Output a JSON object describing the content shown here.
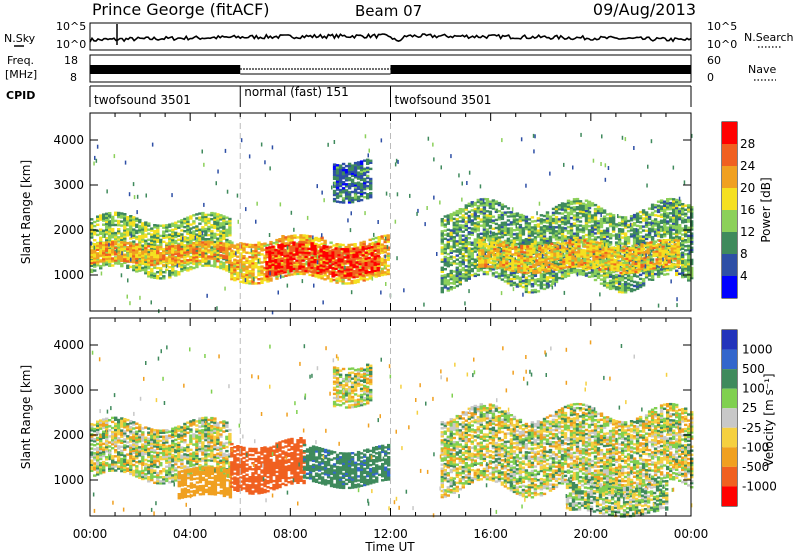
{
  "header": {
    "station": "Prince George (fitACF)",
    "beam": "Beam 07",
    "date": "09/Aug/2013"
  },
  "strips": {
    "nsky_label": "N.Sky",
    "nsearch_label": "N.Search",
    "freq_label_1": "Freq.",
    "freq_label_2": "[MHz]",
    "nave_label": "Nave",
    "cpid_label": "CPID",
    "noise_ticks_left": [
      "10^5",
      "10^0"
    ],
    "noise_ticks_right": [
      "10^5",
      "10^0"
    ],
    "freq_ticks": [
      "18",
      "8"
    ],
    "nave_ticks": [
      "60",
      "0"
    ]
  },
  "cpid_segments": [
    {
      "label": "twofsound 3501",
      "start": 0,
      "end": 6
    },
    {
      "label": "normal (fast) 151",
      "start": 6,
      "end": 12
    },
    {
      "label": "twofsound 3501",
      "start": 12,
      "end": 24
    }
  ],
  "chart_data": [
    {
      "type": "heatmap",
      "name": "power",
      "ylabel": "Slant Range [km]",
      "xlabel": "Time UT",
      "xlim": [
        0,
        24
      ],
      "ylim": [
        200,
        4600
      ],
      "x_ticks": [
        "00:00",
        "04:00",
        "08:00",
        "12:00",
        "16:00",
        "20:00",
        "00:00"
      ],
      "y_ticks": [
        1000,
        2000,
        3000,
        4000
      ],
      "colorbar": {
        "label": "Power [dB]",
        "levels": [
          4,
          8,
          12,
          16,
          20,
          24,
          28
        ],
        "colors": [
          "#0000ff",
          "#2e4fa6",
          "#3f8a5c",
          "#8cd05a",
          "#f5e020",
          "#f0a020",
          "#f06020",
          "#ff0000"
        ]
      },
      "regions": [
        {
          "t0": 0.0,
          "t1": 5.6,
          "r0": 1050,
          "r1": 2250,
          "value": 14
        },
        {
          "t0": 0.0,
          "t1": 5.6,
          "r0": 1250,
          "r1": 1700,
          "value": 22
        },
        {
          "t0": 5.6,
          "t1": 11.9,
          "r0": 900,
          "r1": 1800,
          "value": 20
        },
        {
          "t0": 7.0,
          "t1": 11.5,
          "r0": 1000,
          "r1": 1650,
          "value": 28
        },
        {
          "t0": 9.7,
          "t1": 11.2,
          "r0": 2700,
          "r1": 3600,
          "value": 8
        },
        {
          "t0": 14.0,
          "t1": 24.0,
          "r0": 800,
          "r1": 2500,
          "value": 12
        },
        {
          "t0": 15.5,
          "t1": 23.5,
          "r0": 1100,
          "r1": 1700,
          "value": 20
        }
      ]
    },
    {
      "type": "heatmap",
      "name": "velocity",
      "ylabel": "Slant Range [km]",
      "xlabel": "Time UT",
      "xlim": [
        0,
        24
      ],
      "ylim": [
        200,
        4600
      ],
      "x_ticks": [
        "00:00",
        "04:00",
        "08:00",
        "12:00",
        "16:00",
        "20:00",
        "00:00"
      ],
      "y_ticks": [
        1000,
        2000,
        3000,
        4000
      ],
      "colorbar": {
        "label": "Velocity [m s⁻¹]",
        "levels": [
          1000,
          500,
          100,
          25,
          -25,
          -100,
          -500,
          -1000
        ],
        "colors": [
          "#2233bb",
          "#3366cc",
          "#3f8a5c",
          "#80d050",
          "#c8c8c8",
          "#f5d040",
          "#f0a020",
          "#f06020",
          "#ff0000"
        ]
      },
      "regions": [
        {
          "t0": 0.0,
          "t1": 5.6,
          "r0": 1050,
          "r1": 2250,
          "value": 0
        },
        {
          "t0": 3.5,
          "t1": 5.6,
          "r0": 600,
          "r1": 1200,
          "value": -300
        },
        {
          "t0": 5.6,
          "t1": 8.5,
          "r0": 800,
          "r1": 1800,
          "value": -800
        },
        {
          "t0": 8.5,
          "t1": 11.9,
          "r0": 900,
          "r1": 1700,
          "value": 400
        },
        {
          "t0": 9.7,
          "t1": 11.2,
          "r0": 2700,
          "r1": 3600,
          "value": 0
        },
        {
          "t0": 14.0,
          "t1": 24.0,
          "r0": 800,
          "r1": 2500,
          "value": 0
        },
        {
          "t0": 19.0,
          "t1": 23.0,
          "r0": 250,
          "r1": 900,
          "value": 60
        }
      ]
    }
  ]
}
